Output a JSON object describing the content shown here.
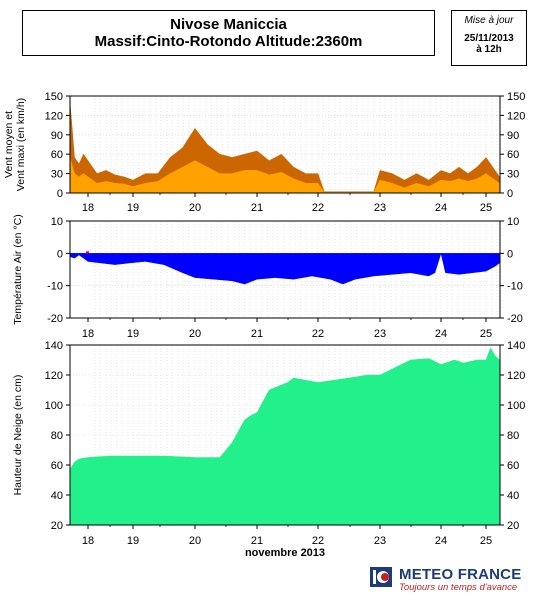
{
  "header": {
    "station": "Nivose Maniccia",
    "subtitle": "Massif:Cinto-Rotondo Altitude:2360m"
  },
  "update": {
    "label": "Mise à jour",
    "date": "25/11/2013",
    "time": "à 12h"
  },
  "branding": {
    "name": "METEO FRANCE",
    "tagline": "Toujours un temps d'avance",
    "colors": {
      "brand": "#1f3a7a",
      "tagline": "#c62020"
    }
  },
  "chart_data": [
    {
      "type": "area",
      "ylabel": "Vent moyen et Vent maxi (en km/h)",
      "ylim": [
        0,
        150
      ],
      "yticks": [
        0,
        30,
        60,
        90,
        120,
        150
      ],
      "xticks": [
        "18",
        "19",
        "20",
        "21",
        "22",
        "23",
        "24",
        "25"
      ],
      "grid": true,
      "colors": {
        "max": "#cc6600",
        "mean": "#ffa200"
      },
      "series": [
        {
          "role": "max",
          "x": [
            17.5,
            17.6,
            17.7,
            17.8,
            17.9,
            18.0,
            18.2,
            18.4,
            18.6,
            18.8,
            19.0,
            19.2,
            19.4,
            19.6,
            19.8,
            20.0,
            20.2,
            20.4,
            20.6,
            20.8,
            21.0,
            21.2,
            21.4,
            21.6,
            21.8,
            22.0,
            22.1,
            22.2,
            22.9,
            23.0,
            23.2,
            23.4,
            23.6,
            23.8,
            24.0,
            24.2,
            24.4,
            24.6,
            24.8,
            25.0,
            25.2,
            25.3
          ],
          "y": [
            70,
            142,
            55,
            45,
            60,
            50,
            30,
            35,
            28,
            25,
            20,
            30,
            30,
            55,
            70,
            100,
            75,
            60,
            55,
            60,
            65,
            50,
            60,
            40,
            30,
            30,
            2,
            2,
            2,
            35,
            30,
            20,
            30,
            20,
            35,
            30,
            40,
            30,
            40,
            55,
            35,
            25
          ]
        },
        {
          "role": "mean",
          "x": [
            17.5,
            17.6,
            17.7,
            17.8,
            17.9,
            18.0,
            18.2,
            18.4,
            18.6,
            18.8,
            19.0,
            19.2,
            19.4,
            19.6,
            19.8,
            20.0,
            20.2,
            20.4,
            20.6,
            20.8,
            21.0,
            21.2,
            21.4,
            21.6,
            21.8,
            22.0,
            22.1,
            22.2,
            22.9,
            23.0,
            23.2,
            23.4,
            23.6,
            23.8,
            24.0,
            24.2,
            24.4,
            24.6,
            24.8,
            25.0,
            25.2,
            25.3
          ],
          "y": [
            30,
            55,
            30,
            25,
            30,
            25,
            15,
            18,
            15,
            14,
            10,
            15,
            18,
            30,
            40,
            50,
            40,
            30,
            30,
            35,
            35,
            28,
            32,
            22,
            15,
            15,
            1,
            1,
            1,
            20,
            15,
            8,
            15,
            10,
            20,
            18,
            22,
            18,
            22,
            30,
            20,
            15
          ]
        }
      ]
    },
    {
      "type": "area",
      "ylabel": "Température Air (en °C)",
      "ylim": [
        -20,
        10
      ],
      "yticks": [
        -20,
        -10,
        0,
        10
      ],
      "xticks": [
        "18",
        "19",
        "20",
        "21",
        "22",
        "23",
        "24",
        "25"
      ],
      "grid": true,
      "colors": {
        "below": "#0000ff",
        "above": "#ff0000"
      },
      "series": [
        {
          "name": "temperature",
          "x": [
            17.5,
            17.7,
            17.8,
            18.0,
            18.3,
            18.6,
            18.9,
            19.2,
            19.5,
            19.8,
            20.0,
            20.3,
            20.6,
            20.8,
            21.0,
            21.3,
            21.6,
            21.9,
            22.2,
            22.4,
            22.6,
            22.9,
            23.2,
            23.5,
            23.8,
            23.9,
            24.0,
            24.1,
            24.4,
            24.7,
            25.0,
            25.2,
            25.3
          ],
          "y": [
            -0.5,
            -1.5,
            -0.5,
            -2.5,
            -3,
            -3.5,
            -3,
            -2.5,
            -3.5,
            -6,
            -7.5,
            -8,
            -8.5,
            -9.5,
            -8,
            -7.5,
            -8,
            -7,
            -8,
            -9.5,
            -8,
            -7,
            -6.5,
            -6,
            -7,
            -6,
            0,
            -6,
            -6.5,
            -6,
            -5.5,
            -4,
            -3
          ]
        }
      ]
    },
    {
      "type": "area",
      "ylabel": "Hauteur de Neige (en cm)",
      "xlabel": "novembre 2013",
      "ylim": [
        20,
        140
      ],
      "yticks": [
        20,
        40,
        60,
        80,
        100,
        120,
        140
      ],
      "xticks": [
        "18",
        "19",
        "20",
        "21",
        "22",
        "23",
        "24",
        "25"
      ],
      "grid": true,
      "colors": {
        "fill": "#22f08a"
      },
      "series": [
        {
          "name": "snow_depth",
          "x": [
            17.5,
            17.6,
            17.7,
            17.8,
            18.0,
            18.5,
            19.0,
            19.5,
            20.0,
            20.4,
            20.6,
            20.8,
            20.9,
            21.0,
            21.2,
            21.5,
            21.6,
            22.0,
            22.5,
            22.8,
            23.0,
            23.5,
            23.8,
            24.0,
            24.3,
            24.5,
            24.8,
            25.0,
            25.1,
            25.2,
            25.3
          ],
          "y": [
            50,
            57,
            62,
            64,
            65,
            66,
            66,
            66,
            65,
            65,
            75,
            90,
            93,
            95,
            110,
            115,
            118,
            115,
            118,
            120,
            120,
            130,
            131,
            127,
            130,
            128,
            130,
            130,
            138,
            133,
            130
          ]
        }
      ]
    }
  ]
}
